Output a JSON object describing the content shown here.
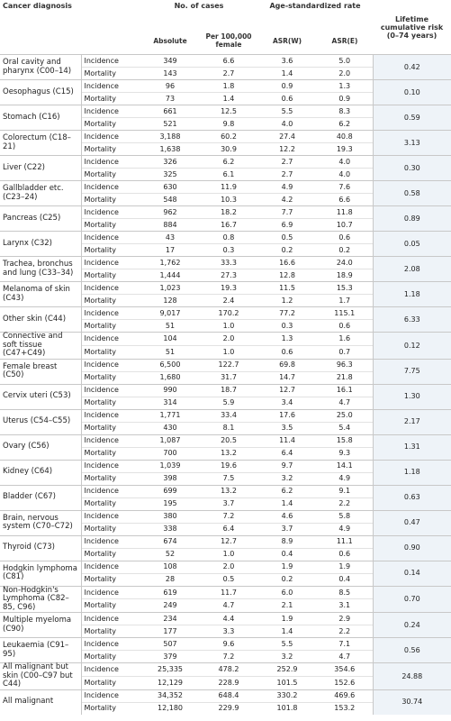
{
  "header": {
    "diagnosis": "Cancer diagnosis",
    "cases": "No. of cases",
    "rate": "Age-standardized rate",
    "lifetime": "Lifetime cumulative risk (0–74 years)",
    "absolute": "Absolute",
    "per100k": "Per 100,000 female",
    "asrw": "ASR(W)",
    "asre": "ASR(E)"
  },
  "rows": [
    {
      "diagnosis": "Oral cavity and pharynx (C00–14)",
      "lifetime": "0.42",
      "incidence": {
        "label": "Incidence",
        "absolute": "349",
        "per100k": "6.6",
        "asrw": "3.6",
        "asre": "5.0"
      },
      "mortality": {
        "label": "Mortality",
        "absolute": "143",
        "per100k": "2.7",
        "asrw": "1.4",
        "asre": "2.0"
      }
    },
    {
      "diagnosis": "Oesophagus (C15)",
      "lifetime": "0.10",
      "incidence": {
        "label": "Incidence",
        "absolute": "96",
        "per100k": "1.8",
        "asrw": "0.9",
        "asre": "1.3"
      },
      "mortality": {
        "label": "Mortality",
        "absolute": "73",
        "per100k": "1.4",
        "asrw": "0.6",
        "asre": "0.9"
      }
    },
    {
      "diagnosis": "Stomach (C16)",
      "lifetime": "0.59",
      "incidence": {
        "label": "Incidence",
        "absolute": "661",
        "per100k": "12.5",
        "asrw": "5.5",
        "asre": "8.3"
      },
      "mortality": {
        "label": "Mortality",
        "absolute": "521",
        "per100k": "9.8",
        "asrw": "4.0",
        "asre": "6.2"
      }
    },
    {
      "diagnosis": "Colorectum (C18–21)",
      "lifetime": "3.13",
      "incidence": {
        "label": "Incidence",
        "absolute": "3,188",
        "per100k": "60.2",
        "asrw": "27.4",
        "asre": "40.8"
      },
      "mortality": {
        "label": "Mortality",
        "absolute": "1,638",
        "per100k": "30.9",
        "asrw": "12.2",
        "asre": "19.3"
      }
    },
    {
      "diagnosis": "Liver (C22)",
      "lifetime": "0.30",
      "incidence": {
        "label": "Incidence",
        "absolute": "326",
        "per100k": "6.2",
        "asrw": "2.7",
        "asre": "4.0"
      },
      "mortality": {
        "label": "Mortality",
        "absolute": "325",
        "per100k": "6.1",
        "asrw": "2.7",
        "asre": "4.0"
      }
    },
    {
      "diagnosis": "Gallbladder etc. (C23–24)",
      "lifetime": "0.58",
      "incidence": {
        "label": "Incidence",
        "absolute": "630",
        "per100k": "11.9",
        "asrw": "4.9",
        "asre": "7.6"
      },
      "mortality": {
        "label": "Mortality",
        "absolute": "548",
        "per100k": "10.3",
        "asrw": "4.2",
        "asre": "6.6"
      }
    },
    {
      "diagnosis": "Pancreas (C25)",
      "lifetime": "0.89",
      "incidence": {
        "label": "Incidence",
        "absolute": "962",
        "per100k": "18.2",
        "asrw": "7.7",
        "asre": "11.8"
      },
      "mortality": {
        "label": "Mortality",
        "absolute": "884",
        "per100k": "16.7",
        "asrw": "6.9",
        "asre": "10.7"
      }
    },
    {
      "diagnosis": "Larynx (C32)",
      "lifetime": "0.05",
      "incidence": {
        "label": "Incidence",
        "absolute": "43",
        "per100k": "0.8",
        "asrw": "0.5",
        "asre": "0.6"
      },
      "mortality": {
        "label": "Mortality",
        "absolute": "17",
        "per100k": "0.3",
        "asrw": "0.2",
        "asre": "0.2"
      }
    },
    {
      "diagnosis": "Trachea, bronchus and lung (C33–34)",
      "lifetime": "2.08",
      "incidence": {
        "label": "Incidence",
        "absolute": "1,762",
        "per100k": "33.3",
        "asrw": "16.6",
        "asre": "24.0"
      },
      "mortality": {
        "label": "Mortality",
        "absolute": "1,444",
        "per100k": "27.3",
        "asrw": "12.8",
        "asre": "18.9"
      }
    },
    {
      "diagnosis": "Melanoma of skin (C43)",
      "lifetime": "1.18",
      "incidence": {
        "label": "Incidence",
        "absolute": "1,023",
        "per100k": "19.3",
        "asrw": "11.5",
        "asre": "15.3"
      },
      "mortality": {
        "label": "Mortality",
        "absolute": "128",
        "per100k": "2.4",
        "asrw": "1.2",
        "asre": "1.7"
      }
    },
    {
      "diagnosis": "Other skin (C44)",
      "lifetime": "6.33",
      "incidence": {
        "label": "Incidence",
        "absolute": "9,017",
        "per100k": "170.2",
        "asrw": "77.2",
        "asre": "115.1"
      },
      "mortality": {
        "label": "Mortality",
        "absolute": "51",
        "per100k": "1.0",
        "asrw": "0.3",
        "asre": "0.6"
      }
    },
    {
      "diagnosis": "Connective and soft tissue (C47+C49)",
      "lifetime": "0.12",
      "incidence": {
        "label": "Incidence",
        "absolute": "104",
        "per100k": "2.0",
        "asrw": "1.3",
        "asre": "1.6"
      },
      "mortality": {
        "label": "Mortality",
        "absolute": "51",
        "per100k": "1.0",
        "asrw": "0.6",
        "asre": "0.7"
      }
    },
    {
      "diagnosis": "Female breast (C50)",
      "lifetime": "7.75",
      "incidence": {
        "label": "Incidence",
        "absolute": "6,500",
        "per100k": "122.7",
        "asrw": "69.8",
        "asre": "96.3"
      },
      "mortality": {
        "label": "Mortality",
        "absolute": "1,680",
        "per100k": "31.7",
        "asrw": "14.7",
        "asre": "21.8"
      }
    },
    {
      "diagnosis": "Cervix uteri (C53)",
      "lifetime": "1.30",
      "incidence": {
        "label": "Incidence",
        "absolute": "990",
        "per100k": "18.7",
        "asrw": "12.7",
        "asre": "16.1"
      },
      "mortality": {
        "label": "Mortality",
        "absolute": "314",
        "per100k": "5.9",
        "asrw": "3.4",
        "asre": "4.7"
      }
    },
    {
      "diagnosis": "Uterus (C54–C55)",
      "lifetime": "2.17",
      "incidence": {
        "label": "Incidence",
        "absolute": "1,771",
        "per100k": "33.4",
        "asrw": "17.6",
        "asre": "25.0"
      },
      "mortality": {
        "label": "Mortality",
        "absolute": "430",
        "per100k": "8.1",
        "asrw": "3.5",
        "asre": "5.4"
      }
    },
    {
      "diagnosis": "Ovary (C56)",
      "lifetime": "1.31",
      "incidence": {
        "label": "Incidence",
        "absolute": "1,087",
        "per100k": "20.5",
        "asrw": "11.4",
        "asre": "15.8"
      },
      "mortality": {
        "label": "Mortality",
        "absolute": "700",
        "per100k": "13.2",
        "asrw": "6.4",
        "asre": "9.3"
      }
    },
    {
      "diagnosis": "Kidney (C64)",
      "lifetime": "1.18",
      "incidence": {
        "label": "Incidence",
        "absolute": "1,039",
        "per100k": "19.6",
        "asrw": "9.7",
        "asre": "14.1"
      },
      "mortality": {
        "label": "Mortality",
        "absolute": "398",
        "per100k": "7.5",
        "asrw": "3.2",
        "asre": "4.9"
      }
    },
    {
      "diagnosis": "Bladder (C67)",
      "lifetime": "0.63",
      "incidence": {
        "label": "Incidence",
        "absolute": "699",
        "per100k": "13.2",
        "asrw": "6.2",
        "asre": "9.1"
      },
      "mortality": {
        "label": "Mortality",
        "absolute": "195",
        "per100k": "3.7",
        "asrw": "1.4",
        "asre": "2.2"
      }
    },
    {
      "diagnosis": "Brain, nervous system (C70–C72)",
      "lifetime": "0.47",
      "incidence": {
        "label": "Incidence",
        "absolute": "380",
        "per100k": "7.2",
        "asrw": "4.6",
        "asre": "5.8"
      },
      "mortality": {
        "label": "Mortality",
        "absolute": "338",
        "per100k": "6.4",
        "asrw": "3.7",
        "asre": "4.9"
      }
    },
    {
      "diagnosis": "Thyroid (C73)",
      "lifetime": "0.90",
      "incidence": {
        "label": "Incidence",
        "absolute": "674",
        "per100k": "12.7",
        "asrw": "8.9",
        "asre": "11.1"
      },
      "mortality": {
        "label": "Mortality",
        "absolute": "52",
        "per100k": "1.0",
        "asrw": "0.4",
        "asre": "0.6"
      }
    },
    {
      "diagnosis": "Hodgkin lymphoma (C81)",
      "lifetime": "0.14",
      "incidence": {
        "label": "Incidence",
        "absolute": "108",
        "per100k": "2.0",
        "asrw": "1.9",
        "asre": "1.9"
      },
      "mortality": {
        "label": "Mortality",
        "absolute": "28",
        "per100k": "0.5",
        "asrw": "0.2",
        "asre": "0.4"
      }
    },
    {
      "diagnosis": "Non-Hodgkin's Lymphoma (C82–85, C96)",
      "lifetime": "0.70",
      "incidence": {
        "label": "Incidence",
        "absolute": "619",
        "per100k": "11.7",
        "asrw": "6.0",
        "asre": "8.5"
      },
      "mortality": {
        "label": "Mortality",
        "absolute": "249",
        "per100k": "4.7",
        "asrw": "2.1",
        "asre": "3.1"
      }
    },
    {
      "diagnosis": "Multiple myeloma (C90)",
      "lifetime": "0.24",
      "incidence": {
        "label": "Incidence",
        "absolute": "234",
        "per100k": "4.4",
        "asrw": "1.9",
        "asre": "2.9"
      },
      "mortality": {
        "label": "Mortality",
        "absolute": "177",
        "per100k": "3.3",
        "asrw": "1.4",
        "asre": "2.2"
      }
    },
    {
      "diagnosis": "Leukaemia (C91–95)",
      "lifetime": "0.56",
      "incidence": {
        "label": "Incidence",
        "absolute": "507",
        "per100k": "9.6",
        "asrw": "5.5",
        "asre": "7.1"
      },
      "mortality": {
        "label": "Mortality",
        "absolute": "379",
        "per100k": "7.2",
        "asrw": "3.2",
        "asre": "4.7"
      }
    },
    {
      "diagnosis": "All malignant but skin (C00–C97 but C44)",
      "lifetime": "24.88",
      "incidence": {
        "label": "Incidence",
        "absolute": "25,335",
        "per100k": "478.2",
        "asrw": "252.9",
        "asre": "354.6"
      },
      "mortality": {
        "label": "Mortality",
        "absolute": "12,129",
        "per100k": "228.9",
        "asrw": "101.5",
        "asre": "152.6"
      }
    },
    {
      "diagnosis": "All malignant",
      "lifetime": "30.74",
      "incidence": {
        "label": "Incidence",
        "absolute": "34,352",
        "per100k": "648.4",
        "asrw": "330.2",
        "asre": "469.6"
      },
      "mortality": {
        "label": "Mortality",
        "absolute": "12,180",
        "per100k": "229.9",
        "asrw": "101.8",
        "asre": "153.2"
      }
    }
  ]
}
